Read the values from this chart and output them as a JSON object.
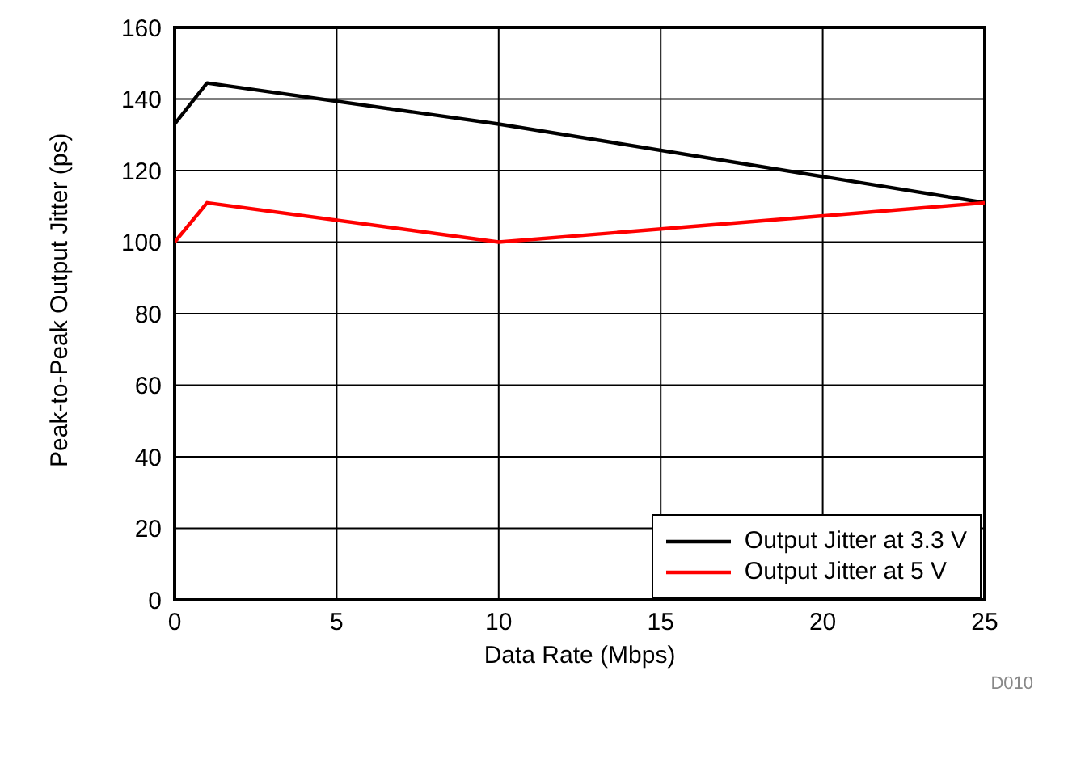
{
  "chart_data": {
    "type": "line",
    "xlabel": "Data Rate (Mbps)",
    "ylabel": "Peak-to-Peak Output Jitter (ps)",
    "x": [
      0,
      1,
      10,
      25
    ],
    "series": [
      {
        "name": "Output Jitter at 3.3 V",
        "color": "#000000",
        "values": [
          133,
          144.5,
          133,
          111
        ]
      },
      {
        "name": "Output Jitter at 5 V",
        "color": "#ff0000",
        "values": [
          100,
          111,
          100,
          111
        ]
      }
    ],
    "xlim": [
      0,
      25
    ],
    "xticks": [
      0,
      5,
      10,
      15,
      20,
      25
    ],
    "ylim": [
      0,
      160
    ],
    "yticks": [
      0,
      20,
      40,
      60,
      80,
      100,
      120,
      140,
      160
    ],
    "grid": true,
    "legend": "bottom right",
    "marker": "none",
    "line_style": "solid",
    "annotations": [
      "D010"
    ]
  }
}
